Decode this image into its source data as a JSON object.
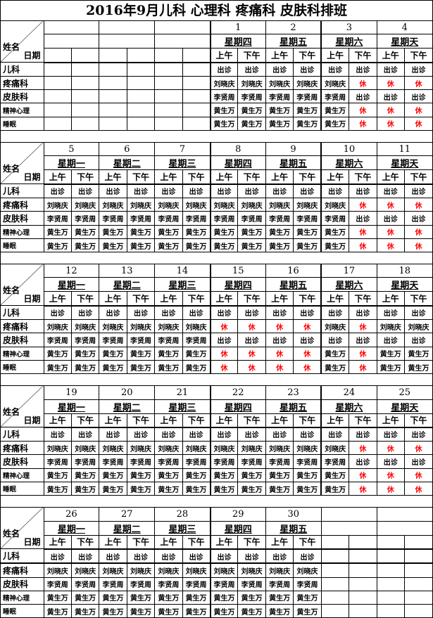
{
  "title": "2016年9月儿科  心理科  疼痛科  皮肤科排班",
  "corner": {
    "name": "姓名",
    "date": "日期"
  },
  "ampm": [
    "上午",
    "下午"
  ],
  "departments": [
    "儿科",
    "疼痛科",
    "皮肤科",
    "精神心理",
    "睡眠"
  ],
  "rest_color": "#ff0000",
  "blocks": [
    {
      "dates": [
        "",
        "",
        "",
        "1",
        "2",
        "3",
        "4"
      ],
      "weekdays": [
        "",
        "",
        "",
        "星期四",
        "星期五",
        "星期六",
        "星期天"
      ],
      "show_ampm": [
        false,
        false,
        false,
        true,
        true,
        true,
        true
      ],
      "rows": [
        [
          "",
          "",
          "",
          "",
          "",
          "",
          "出诊",
          "出诊",
          "出诊",
          "出诊",
          "出诊",
          "出诊",
          "出诊",
          "出诊"
        ],
        [
          "",
          "",
          "",
          "",
          "",
          "",
          "刘晓庆",
          "刘晓庆",
          "刘晓庆",
          "刘晓庆",
          "刘晓庆",
          "休",
          "休",
          "休"
        ],
        [
          "",
          "",
          "",
          "",
          "",
          "",
          "李贤周",
          "李贤周",
          "李贤周",
          "李贤周",
          "李贤周",
          "出诊",
          "出诊",
          "出诊"
        ],
        [
          "",
          "",
          "",
          "",
          "",
          "",
          "黄生万",
          "黄生万",
          "黄生万",
          "黄生万",
          "黄生万",
          "休",
          "休",
          "休"
        ],
        [
          "",
          "",
          "",
          "",
          "",
          "",
          "黄生万",
          "黄生万",
          "黄生万",
          "黄生万",
          "黄生万",
          "休",
          "休",
          "休"
        ]
      ]
    },
    {
      "dates": [
        "5",
        "6",
        "7",
        "8",
        "9",
        "10",
        "11"
      ],
      "weekdays": [
        "星期一",
        "星期二",
        "星期三",
        "星期四",
        "星期五",
        "星期六",
        "星期天"
      ],
      "show_ampm": [
        true,
        true,
        true,
        true,
        true,
        true,
        true
      ],
      "rows": [
        [
          "出诊",
          "出诊",
          "出诊",
          "出诊",
          "出诊",
          "出诊",
          "出诊",
          "出诊",
          "出诊",
          "出诊",
          "出诊",
          "出诊",
          "出诊",
          "出诊"
        ],
        [
          "刘晓庆",
          "刘晓庆",
          "刘晓庆",
          "刘晓庆",
          "刘晓庆",
          "刘晓庆",
          "刘晓庆",
          "刘晓庆",
          "刘晓庆",
          "刘晓庆",
          "刘晓庆",
          "休",
          "休",
          "休"
        ],
        [
          "李贤周",
          "李贤周",
          "李贤周",
          "李贤周",
          "李贤周",
          "李贤周",
          "李贤周",
          "李贤周",
          "李贤周",
          "李贤周",
          "李贤周",
          "出诊",
          "出诊",
          "出诊"
        ],
        [
          "黄生万",
          "黄生万",
          "黄生万",
          "黄生万",
          "黄生万",
          "黄生万",
          "黄生万",
          "黄生万",
          "黄生万",
          "黄生万",
          "黄生万",
          "休",
          "休",
          "休"
        ],
        [
          "黄生万",
          "黄生万",
          "黄生万",
          "黄生万",
          "黄生万",
          "黄生万",
          "黄生万",
          "黄生万",
          "黄生万",
          "黄生万",
          "黄生万",
          "休",
          "休",
          "休"
        ]
      ]
    },
    {
      "dates": [
        "12",
        "13",
        "14",
        "15",
        "16",
        "17",
        "18"
      ],
      "weekdays": [
        "星期一",
        "星期二",
        "星期三",
        "星期四",
        "星期五",
        "星期六",
        "星期天"
      ],
      "show_ampm": [
        true,
        true,
        true,
        true,
        true,
        true,
        true
      ],
      "rows": [
        [
          "出诊",
          "出诊",
          "出诊",
          "出诊",
          "出诊",
          "出诊",
          "出诊",
          "出诊",
          "出诊",
          "出诊",
          "出诊",
          "出诊",
          "出诊",
          "出诊"
        ],
        [
          "刘晓庆",
          "刘晓庆",
          "刘晓庆",
          "刘晓庆",
          "刘晓庆",
          "刘晓庆",
          "休",
          "休",
          "休",
          "休",
          "刘晓庆",
          "休",
          "刘晓庆",
          "刘晓庆"
        ],
        [
          "李贤周",
          "李贤周",
          "李贤周",
          "李贤周",
          "李贤周",
          "李贤周",
          "出诊",
          "出诊",
          "出诊",
          "出诊",
          "出诊",
          "出诊",
          "出诊",
          "出诊"
        ],
        [
          "黄生万",
          "黄生万",
          "黄生万",
          "黄生万",
          "黄生万",
          "黄生万",
          "休",
          "休",
          "休",
          "休",
          "黄生万",
          "休",
          "黄生万",
          "黄生万"
        ],
        [
          "黄生万",
          "黄生万",
          "黄生万",
          "黄生万",
          "黄生万",
          "黄生万",
          "休",
          "休",
          "休",
          "休",
          "黄生万",
          "休",
          "黄生万",
          "黄生万"
        ]
      ]
    },
    {
      "dates": [
        "19",
        "20",
        "21",
        "22",
        "23",
        "24",
        "25"
      ],
      "weekdays": [
        "星期一",
        "星期二",
        "星期三",
        "星期四",
        "星期五",
        "星期六",
        "星期天"
      ],
      "show_ampm": [
        true,
        true,
        true,
        true,
        true,
        true,
        true
      ],
      "rows": [
        [
          "出诊",
          "出诊",
          "出诊",
          "出诊",
          "出诊",
          "出诊",
          "出诊",
          "出诊",
          "出诊",
          "出诊",
          "出诊",
          "出诊",
          "出诊",
          "出诊"
        ],
        [
          "刘晓庆",
          "刘晓庆",
          "刘晓庆",
          "刘晓庆",
          "刘晓庆",
          "刘晓庆",
          "刘晓庆",
          "刘晓庆",
          "刘晓庆",
          "刘晓庆",
          "刘晓庆",
          "休",
          "休",
          "休"
        ],
        [
          "李贤周",
          "李贤周",
          "李贤周",
          "李贤周",
          "李贤周",
          "李贤周",
          "李贤周",
          "李贤周",
          "李贤周",
          "李贤周",
          "李贤周",
          "出诊",
          "出诊",
          "出诊"
        ],
        [
          "黄生万",
          "黄生万",
          "黄生万",
          "黄生万",
          "黄生万",
          "黄生万",
          "黄生万",
          "黄生万",
          "黄生万",
          "黄生万",
          "黄生万",
          "休",
          "休",
          "休"
        ],
        [
          "黄生万",
          "黄生万",
          "黄生万",
          "黄生万",
          "黄生万",
          "黄生万",
          "黄生万",
          "黄生万",
          "黄生万",
          "黄生万",
          "黄生万",
          "休",
          "休",
          "休"
        ]
      ]
    },
    {
      "dates": [
        "26",
        "27",
        "28",
        "29",
        "30",
        "",
        ""
      ],
      "weekdays": [
        "星期一",
        "星期二",
        "星期三",
        "星期四",
        "星期五",
        "",
        ""
      ],
      "show_ampm": [
        true,
        true,
        true,
        true,
        true,
        false,
        false
      ],
      "rows": [
        [
          "出诊",
          "出诊",
          "出诊",
          "出诊",
          "出诊",
          "出诊",
          "出诊",
          "出诊",
          "出诊",
          "出诊",
          "",
          "",
          "",
          ""
        ],
        [
          "刘晓庆",
          "刘晓庆",
          "刘晓庆",
          "刘晓庆",
          "刘晓庆",
          "刘晓庆",
          "刘晓庆",
          "刘晓庆",
          "刘晓庆",
          "刘晓庆",
          "",
          "",
          "",
          ""
        ],
        [
          "李贤周",
          "李贤周",
          "李贤周",
          "李贤周",
          "李贤周",
          "李贤周",
          "李贤周",
          "李贤周",
          "李贤周",
          "李贤周",
          "",
          "",
          "",
          ""
        ],
        [
          "黄生万",
          "黄生万",
          "黄生万",
          "黄生万",
          "黄生万",
          "黄生万",
          "黄生万",
          "黄生万",
          "黄生万",
          "黄生万",
          "",
          "",
          "",
          ""
        ],
        [
          "黄生万",
          "黄生万",
          "黄生万",
          "黄生万",
          "黄生万",
          "黄生万",
          "黄生万",
          "黄生万",
          "黄生万",
          "黄生万",
          "",
          "",
          "",
          ""
        ]
      ]
    }
  ]
}
